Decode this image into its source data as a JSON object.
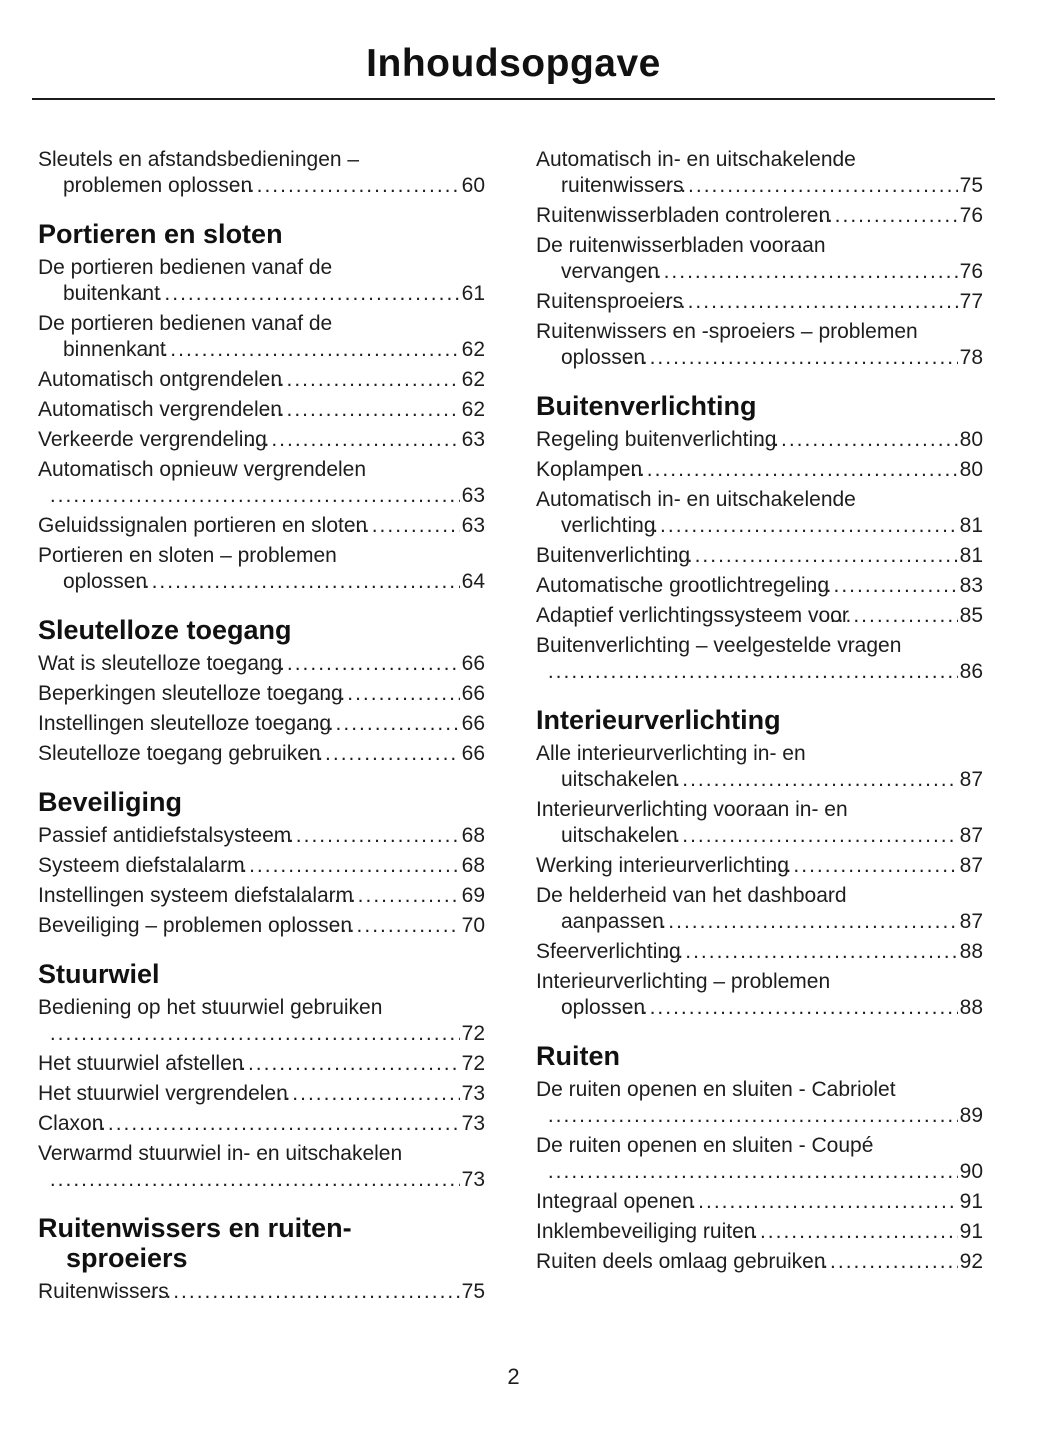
{
  "page": {
    "title": "Inhoudsopgave",
    "page_number": "2"
  },
  "toc": {
    "columns": [
      {
        "blocks": [
          {
            "entries": [
              {
                "lines": [
                  "Sleutels en afstandsbedieningen –",
                  "problemen oplossen"
                ],
                "page": "60"
              }
            ]
          },
          {
            "heading_lines": [
              "Portieren en sloten"
            ],
            "entries": [
              {
                "lines": [
                  "De portieren bedienen vanaf de",
                  "buitenkant"
                ],
                "page": "61"
              },
              {
                "lines": [
                  "De portieren bedienen vanaf de",
                  "binnenkant"
                ],
                "page": "62"
              },
              {
                "lines": [
                  "Automatisch ontgrendelen"
                ],
                "page": "62"
              },
              {
                "lines": [
                  "Automatisch vergrendelen"
                ],
                "page": "62"
              },
              {
                "lines": [
                  "Verkeerde vergrendeling"
                ],
                "page": "63"
              },
              {
                "lines": [
                  "Automatisch opnieuw vergrendelen",
                  ""
                ],
                "page": "63"
              },
              {
                "lines": [
                  "Geluidssignalen portieren en sloten"
                ],
                "page": "63"
              },
              {
                "lines": [
                  "Portieren en sloten – problemen",
                  "oplossen"
                ],
                "page": "64"
              }
            ]
          },
          {
            "heading_lines": [
              "Sleutelloze toegang"
            ],
            "entries": [
              {
                "lines": [
                  "Wat is sleutelloze toegang"
                ],
                "page": "66"
              },
              {
                "lines": [
                  "Beperkingen sleutelloze toegang"
                ],
                "page": "66"
              },
              {
                "lines": [
                  "Instellingen sleutelloze toegang"
                ],
                "page": "66"
              },
              {
                "lines": [
                  "Sleutelloze toegang gebruiken"
                ],
                "page": "66"
              }
            ]
          },
          {
            "heading_lines": [
              "Beveiliging"
            ],
            "entries": [
              {
                "lines": [
                  "Passief antidiefstalsysteem"
                ],
                "page": "68"
              },
              {
                "lines": [
                  "Systeem diefstalalarm"
                ],
                "page": "68"
              },
              {
                "lines": [
                  "Instellingen systeem diefstalalarm"
                ],
                "page": "69"
              },
              {
                "lines": [
                  "Beveiliging – problemen oplossen"
                ],
                "page": "70"
              }
            ]
          },
          {
            "heading_lines": [
              "Stuurwiel"
            ],
            "entries": [
              {
                "lines": [
                  "Bediening op het stuurwiel gebruiken",
                  ""
                ],
                "page": "72"
              },
              {
                "lines": [
                  "Het stuurwiel afstellen"
                ],
                "page": "72"
              },
              {
                "lines": [
                  "Het stuurwiel vergrendelen"
                ],
                "page": "73"
              },
              {
                "lines": [
                  "Claxon"
                ],
                "page": "73"
              },
              {
                "lines": [
                  "Verwarmd stuurwiel in- en uitschakelen",
                  ""
                ],
                "page": "73"
              }
            ]
          },
          {
            "heading_lines": [
              "Ruitenwissers en ruiten-",
              "sproeiers"
            ],
            "entries": [
              {
                "lines": [
                  "Ruitenwissers"
                ],
                "page": "75"
              }
            ]
          }
        ]
      },
      {
        "blocks": [
          {
            "entries": [
              {
                "lines": [
                  "Automatisch in- en uitschakelende",
                  "ruitenwissers"
                ],
                "page": "75"
              },
              {
                "lines": [
                  "Ruitenwisserbladen controleren"
                ],
                "page": "76"
              },
              {
                "lines": [
                  "De ruitenwisserbladen vooraan",
                  "vervangen"
                ],
                "page": "76"
              },
              {
                "lines": [
                  "Ruitensproeiers"
                ],
                "page": "77"
              },
              {
                "lines": [
                  "Ruitenwissers en -sproeiers – problemen",
                  "oplossen"
                ],
                "page": "78"
              }
            ]
          },
          {
            "heading_lines": [
              "Buitenverlichting"
            ],
            "entries": [
              {
                "lines": [
                  "Regeling buitenverlichting"
                ],
                "page": "80"
              },
              {
                "lines": [
                  "Koplampen"
                ],
                "page": "80"
              },
              {
                "lines": [
                  "Automatisch in- en uitschakelende",
                  "verlichting"
                ],
                "page": "81"
              },
              {
                "lines": [
                  "Buitenverlichting"
                ],
                "page": "81"
              },
              {
                "lines": [
                  "Automatische grootlichtregeling"
                ],
                "page": "83"
              },
              {
                "lines": [
                  "Adaptief verlichtingssysteem voor"
                ],
                "page": "85"
              },
              {
                "lines": [
                  "Buitenverlichting – veelgestelde vragen",
                  ""
                ],
                "page": "86"
              }
            ]
          },
          {
            "heading_lines": [
              "Interieurverlichting"
            ],
            "entries": [
              {
                "lines": [
                  "Alle interieurverlichting in- en",
                  "uitschakelen"
                ],
                "page": "87"
              },
              {
                "lines": [
                  "Interieurverlichting vooraan in- en",
                  "uitschakelen"
                ],
                "page": "87"
              },
              {
                "lines": [
                  "Werking interieurverlichting"
                ],
                "page": "87"
              },
              {
                "lines": [
                  "De helderheid van het dashboard",
                  "aanpassen"
                ],
                "page": "87"
              },
              {
                "lines": [
                  "Sfeerverlichting"
                ],
                "page": "88"
              },
              {
                "lines": [
                  "Interieurverlichting – problemen",
                  "oplossen"
                ],
                "page": "88"
              }
            ]
          },
          {
            "heading_lines": [
              "Ruiten"
            ],
            "entries": [
              {
                "lines": [
                  "De ruiten openen en sluiten - Cabriolet",
                  ""
                ],
                "page": "89"
              },
              {
                "lines": [
                  "De ruiten openen en sluiten - Coupé",
                  ""
                ],
                "page": "90"
              },
              {
                "lines": [
                  "Integraal openen"
                ],
                "page": "91"
              },
              {
                "lines": [
                  "Inklembeveiliging ruiten"
                ],
                "page": "91"
              },
              {
                "lines": [
                  "Ruiten deels omlaag gebruiken"
                ],
                "page": "92"
              }
            ]
          }
        ]
      }
    ]
  }
}
